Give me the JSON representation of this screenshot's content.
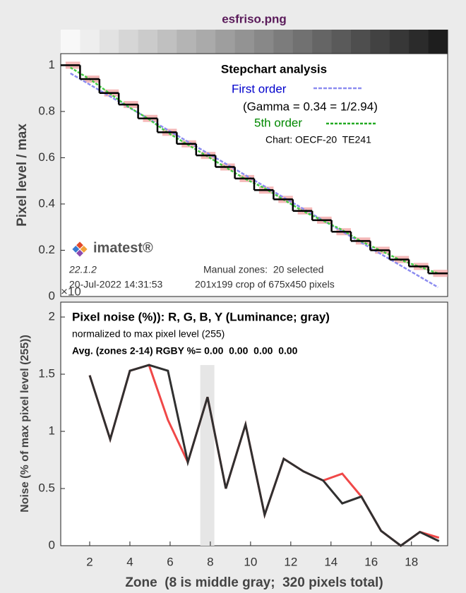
{
  "title": "esfriso.png",
  "strip_colors": [
    "#f8f8f8",
    "#eeeeee",
    "#e2e2e2",
    "#d6d6d6",
    "#cbcbcb",
    "#c0c0c0",
    "#b4b4b4",
    "#aaaaaa",
    "#9e9e9e",
    "#939393",
    "#888888",
    "#7c7c7c",
    "#717171",
    "#656565",
    "#5a5a5a",
    "#4e4e4e",
    "#424242",
    "#373737",
    "#2b2b2b",
    "#1e1e1e"
  ],
  "chart_data": [
    {
      "type": "step",
      "title": "Stepchart analysis",
      "ylabel": "Pixel level / max",
      "xlim": [
        0.5,
        20.5
      ],
      "ylim": [
        0,
        1.05
      ],
      "yticks": [
        0,
        0.2,
        0.4,
        0.6,
        0.8,
        1
      ],
      "x": [
        1,
        2,
        3,
        4,
        5,
        6,
        7,
        8,
        9,
        10,
        11,
        12,
        13,
        14,
        15,
        16,
        17,
        18,
        19,
        20
      ],
      "values": [
        1.0,
        0.94,
        0.88,
        0.83,
        0.77,
        0.71,
        0.66,
        0.61,
        0.56,
        0.51,
        0.46,
        0.42,
        0.37,
        0.33,
        0.28,
        0.24,
        0.2,
        0.16,
        0.13,
        0.1
      ],
      "color": "#000000",
      "band_color": "#f0a0a0",
      "series": [
        {
          "name": "First order",
          "color": "#8c8cf0",
          "x": [
            1,
            20
          ],
          "values": [
            0.965,
            0.04
          ]
        },
        {
          "name": "5th order",
          "color": "#44cc44",
          "x": [
            1,
            2,
            3,
            4,
            5,
            6,
            7,
            8,
            9,
            10,
            11,
            12,
            13,
            14,
            15,
            16,
            17,
            18,
            19,
            20
          ],
          "values": [
            0.99,
            0.94,
            0.88,
            0.82,
            0.77,
            0.71,
            0.66,
            0.61,
            0.56,
            0.51,
            0.47,
            0.42,
            0.37,
            0.33,
            0.29,
            0.24,
            0.2,
            0.16,
            0.13,
            0.1
          ]
        }
      ],
      "annotations": {
        "gamma": "(Gamma = 0.34 = 1/2.94)",
        "chart": "Chart: OECF-20  TE241",
        "logo": "imatest®",
        "version": "22.1.2",
        "date": "20-Jul-2022 14:31:53",
        "zones": "Manual zones:  20 selected",
        "crop": "201x199 crop of 675x450 pixels",
        "exponent": "×10"
      }
    },
    {
      "type": "line",
      "title": "Pixel noise (%)): R, G, B, Y (Luminance; gray)",
      "subtitle": "normalized to max pixel level (255)",
      "note": "Avg. (zones 2-14) RGBY %= 0.00  0.00  0.00  0.00",
      "xlabel": "Zone  (8 is middle gray;  320 pixels total)",
      "ylabel": "Noise (% of max pixel level (255))",
      "xlim": [
        0.56,
        19.8
      ],
      "ylim": [
        0,
        2.13
      ],
      "xticks": [
        2,
        4,
        6,
        8,
        10,
        12,
        14,
        16,
        18
      ],
      "yticks": [
        0,
        0.5,
        1,
        1.5,
        2
      ],
      "highlight": {
        "x": [
          7.5,
          8.2
        ],
        "top": 1.58,
        "color": "#e6e6e6"
      },
      "x": [
        2,
        3.02,
        4.0,
        4.95,
        5.89,
        6.88,
        7.86,
        8.77,
        9.75,
        10.7,
        11.65,
        12.63,
        13.61,
        14.56,
        15.51,
        16.49,
        17.47,
        18.42,
        19.37
      ],
      "series": [
        {
          "color": "#f04848",
          "values": [
            1.49,
            0.93,
            1.53,
            1.58,
            1.1,
            0.73,
            1.3,
            0.5,
            1.06,
            0.27,
            0.76,
            0.65,
            0.57,
            0.63,
            0.43,
            0.13,
            0.0,
            0.12,
            0.07
          ]
        },
        {
          "color": "#303030",
          "values": [
            1.49,
            0.93,
            1.53,
            1.58,
            1.53,
            0.73,
            1.3,
            0.5,
            1.06,
            0.27,
            0.76,
            0.65,
            0.57,
            0.37,
            0.43,
            0.13,
            0.0,
            0.12,
            0.04
          ]
        }
      ]
    }
  ]
}
